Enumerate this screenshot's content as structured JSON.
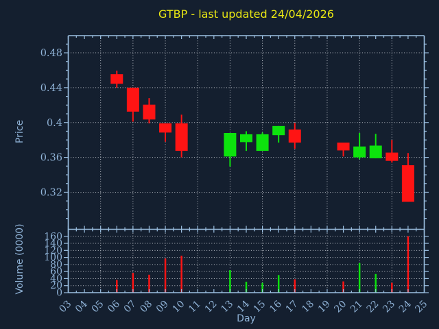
{
  "chart_data": {
    "type": "candlestick",
    "title": "GTBP - last updated 24/04/2026",
    "xlabel": "Day",
    "legend": null,
    "grid": "dotted",
    "x_axis": {
      "xlim": [
        3,
        25
      ],
      "tick_labels": [
        "03",
        "04",
        "05",
        "06",
        "07",
        "08",
        "09",
        "10",
        "11",
        "12",
        "13",
        "14",
        "15",
        "16",
        "17",
        "18",
        "19",
        "20",
        "21",
        "22",
        "23",
        "24",
        "25"
      ],
      "gridline_days": [
        5,
        7,
        9,
        11,
        13,
        15,
        17,
        19,
        21,
        23,
        25
      ],
      "minor_step": 0.5
    },
    "price_axis": {
      "label": "Price",
      "ylim": [
        0.2775,
        0.4997
      ],
      "ticks": [
        0.32,
        0.36,
        0.4,
        0.44,
        0.48
      ],
      "tick_labels": [
        "0.32",
        "0.36",
        "0.4",
        "0.44",
        "0.48"
      ],
      "minor_step": 0.01
    },
    "volume_axis": {
      "label": "Volume (0000)",
      "ylim": [
        0,
        180
      ],
      "ticks": [
        0,
        20,
        40,
        60,
        80,
        100,
        120,
        140,
        160
      ],
      "tick_labels": [
        "0",
        "20",
        "40",
        "60",
        "80",
        "100",
        "120",
        "140",
        "160"
      ]
    },
    "candles": [
      {
        "day": 6,
        "open": 0.4555,
        "high": 0.4595,
        "low": 0.44,
        "close": 0.4445,
        "volume": 36
      },
      {
        "day": 7,
        "open": 0.44,
        "high": 0.44,
        "low": 0.401,
        "close": 0.4125,
        "volume": 56
      },
      {
        "day": 8,
        "open": 0.4205,
        "high": 0.428,
        "low": 0.399,
        "close": 0.4035,
        "volume": 51
      },
      {
        "day": 9,
        "open": 0.399,
        "high": 0.399,
        "low": 0.378,
        "close": 0.3885,
        "volume": 97
      },
      {
        "day": 10,
        "open": 0.399,
        "high": 0.409,
        "low": 0.36,
        "close": 0.3675,
        "volume": 105
      },
      {
        "day": 13,
        "open": 0.361,
        "high": 0.388,
        "low": 0.3495,
        "close": 0.388,
        "volume": 64
      },
      {
        "day": 14,
        "open": 0.3775,
        "high": 0.39,
        "low": 0.3675,
        "close": 0.3865,
        "volume": 31
      },
      {
        "day": 15,
        "open": 0.3675,
        "high": 0.3885,
        "low": 0.3675,
        "close": 0.3865,
        "volume": 28
      },
      {
        "day": 16,
        "open": 0.3855,
        "high": 0.396,
        "low": 0.377,
        "close": 0.396,
        "volume": 50
      },
      {
        "day": 17,
        "open": 0.392,
        "high": 0.3995,
        "low": 0.37,
        "close": 0.377,
        "volume": 38
      },
      {
        "day": 20,
        "open": 0.377,
        "high": 0.377,
        "low": 0.361,
        "close": 0.368,
        "volume": 32
      },
      {
        "day": 21,
        "open": 0.36,
        "high": 0.388,
        "low": 0.358,
        "close": 0.3725,
        "volume": 84
      },
      {
        "day": 22,
        "open": 0.359,
        "high": 0.387,
        "low": 0.359,
        "close": 0.3735,
        "volume": 53
      },
      {
        "day": 23,
        "open": 0.3655,
        "high": 0.38,
        "low": 0.354,
        "close": 0.356,
        "volume": 28
      },
      {
        "day": 24,
        "open": 0.351,
        "high": 0.365,
        "low": 0.309,
        "close": 0.309,
        "volume": 160
      }
    ],
    "colors": {
      "background": "#141f2f",
      "up": "#0de30d",
      "down": "#ff1414",
      "title": "#e9e713",
      "axis_text": "#8fb2d6",
      "spine": "#9cc0e2",
      "grid": "#b9bec6"
    }
  }
}
